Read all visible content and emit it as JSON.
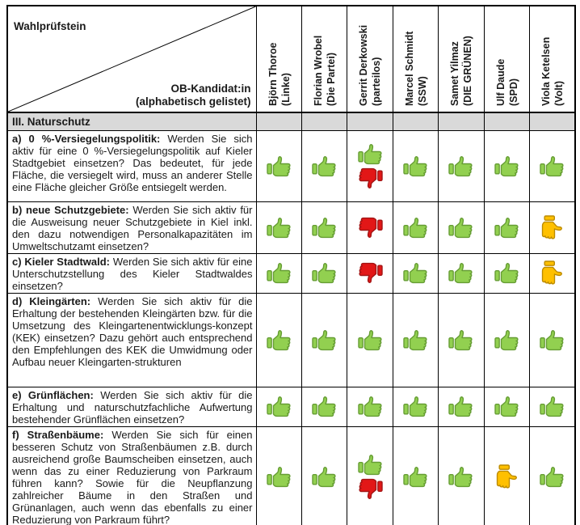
{
  "header": {
    "corner_top_label": "Wahlprüfstein",
    "corner_bottom_label": "OB-Kandidat:in",
    "corner_bottom_sublabel": "(alphabetisch gelistet)"
  },
  "candidates": [
    {
      "name": "Björn Thoroe",
      "party": "(Linke)"
    },
    {
      "name": "Florian Wrobel",
      "party": "(Die Partei)"
    },
    {
      "name": "Gerrit Derkowski",
      "party": "(parteilos)"
    },
    {
      "name": "Marcel Schmidt",
      "party": "(SSW)"
    },
    {
      "name": "Samet Yilmaz",
      "party": "(DIE GRÜNEN)"
    },
    {
      "name": "Ulf Daude",
      "party": "(SPD)"
    },
    {
      "name": "Viola Ketelsen",
      "party": "(Volt)"
    }
  ],
  "section": {
    "title": "III. Naturschutz"
  },
  "rows": [
    {
      "label": "a) 0 %-Versiegelungspolitik:",
      "text": "Werden Sie sich aktiv für eine 0 %-Versiegelungspolitik auf Kieler Stadtgebiet einsetzen? Das bedeutet, für jede Fläche, die versiegelt wird, muss an anderer Stelle eine Fläche gleicher Größe entsiegelt werden.",
      "answers": [
        "up",
        "up",
        "up_down",
        "up",
        "up",
        "up",
        "up"
      ]
    },
    {
      "label": "b) neue Schutzgebiete:",
      "text": "Werden Sie sich aktiv für die Ausweisung neuer Schutzgebiete in Kiel inkl. den dazu notwendigen Personalkapazitäten im Umweltschutzamt einsetzen?",
      "answers": [
        "up",
        "up",
        "down",
        "up",
        "up",
        "up",
        "neutral"
      ]
    },
    {
      "label": "c) Kieler Stadtwald:",
      "text": "Werden Sie sich aktiv für eine Unterschutzstellung des Kieler Stadtwaldes einsetzen?",
      "answers": [
        "up",
        "up",
        "down",
        "up",
        "up",
        "up",
        "neutral"
      ]
    },
    {
      "label": "d) Kleingärten:",
      "text": "Werden Sie sich aktiv für die Erhaltung der bestehenden Kleingärten bzw. für die Umsetzung des Kleingartenentwicklungs-konzept (KEK) einsetzen? Dazu gehört auch entsprechend den Empfehlungen des KEK die Umwidmung oder Aufbau neuer Kleingarten-strukturen",
      "answers": [
        "up",
        "up",
        "up",
        "up",
        "up",
        "up",
        "up"
      ]
    },
    {
      "label": "e) Grünflächen:",
      "text": "Werden Sie sich aktiv für die Erhaltung und naturschutzfachliche Aufwertung bestehender Grünflächen einsetzen?",
      "answers": [
        "up",
        "up",
        "up",
        "up",
        "up",
        "up",
        "up"
      ]
    },
    {
      "label": "f) Straßenbäume:",
      "text": "Werden Sie sich für einen besseren Schutz von Straßenbäumen z.B. durch ausreichend große Baumscheiben einsetzen, auch wenn das zu einer Reduzierung von Parkraum führen kann? Sowie für die Neupflanzung zahlreicher Bäume in den Straßen und Grünanlagen, auch wenn das ebenfalls zu einer Reduzierung von Parkraum führt?",
      "answers": [
        "up",
        "up",
        "up_down",
        "up",
        "up",
        "neutral",
        "up"
      ]
    }
  ],
  "icons": {
    "up": "thumbs-up-icon",
    "down": "thumbs-down-icon",
    "neutral": "thumbs-sideways-icon"
  },
  "colors": {
    "agree_fill": "#92D050",
    "agree_outline": "#669D34",
    "disagree_fill": "#E21717",
    "disagree_outline": "#A31515",
    "neutral_fill": "#FFC000",
    "neutral_outline": "#BC8B00",
    "section_bg": "#D9D9D9",
    "border": "#000000"
  }
}
